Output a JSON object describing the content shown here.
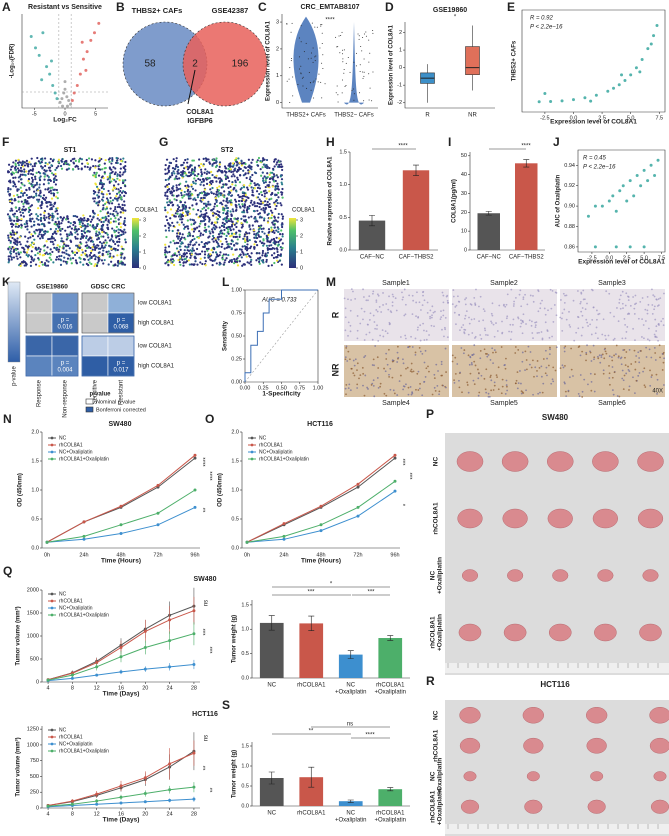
{
  "chart_data": [
    {
      "label": "A",
      "type": "scatter",
      "title": "Resistant vs Sensitive",
      "xlabel": "Log₂FC",
      "ylabel": "-Log₁₀(FDR)",
      "xlim": [
        -7,
        7
      ],
      "xticks": [
        -5,
        0,
        5
      ],
      "ylim": [
        0,
        50
      ],
      "yticks": [],
      "series": [
        {
          "color": "#3aa6a0",
          "x": [
            -5.5,
            -4.8,
            -4.2,
            -3.6,
            -3,
            -2.5,
            -2,
            -1.6,
            -1.3,
            -3.8,
            -2.2
          ],
          "values": [
            38,
            32,
            28,
            40,
            22,
            18,
            12,
            8,
            5,
            15,
            25
          ]
        },
        {
          "color": "#9a9a9a",
          "x": [
            -0.8,
            -0.5,
            -0.2,
            0,
            0.3,
            0.6,
            0.9,
            -0.4,
            0.4,
            0
          ],
          "values": [
            3,
            5,
            8,
            10,
            6,
            4,
            2,
            1,
            1,
            14
          ]
        },
        {
          "color": "#e05a55",
          "x": [
            1.2,
            1.5,
            2,
            2.5,
            3,
            3.6,
            4.2,
            4.8,
            5.5,
            2.8,
            3.4
          ],
          "values": [
            4,
            8,
            12,
            18,
            26,
            30,
            36,
            40,
            45,
            35,
            20
          ]
        }
      ]
    },
    {
      "label": "C",
      "type": "violin",
      "title": "CRC_EMTAB8107",
      "ylabel": "Expression level of COL8A1",
      "categories": [
        "THBS2+ CAFs",
        "THBS2− CAFs"
      ],
      "medians": [
        1.6,
        0
      ],
      "colors": [
        "#3f6fb5",
        "#3f6fb5"
      ],
      "ylim": [
        -0.2,
        3.3
      ],
      "yticks": [
        0,
        1,
        2,
        3
      ],
      "significance": [
        "****"
      ]
    },
    {
      "label": "D",
      "type": "box",
      "title": "GSE19860",
      "ylabel": "Expression level of COL8A1",
      "categories": [
        "R",
        "NR"
      ],
      "colors": [
        "#3c8fc8",
        "#e0705a"
      ],
      "stats": [
        {
          "min": -2,
          "q1": -0.9,
          "median": -0.6,
          "q3": -0.3,
          "max": 0.2
        },
        {
          "min": -1.3,
          "q1": -0.4,
          "median": 0,
          "q3": 1.2,
          "max": 2.4
        }
      ],
      "ylim": [
        -2.3,
        2.6
      ],
      "yticks": [
        -2,
        -1,
        0,
        1,
        2
      ],
      "significance": [
        "*"
      ]
    },
    {
      "label": "E",
      "type": "scatter",
      "xlabel": "Expression level of COL8A1",
      "ylabel": "THBS2+ CAFs",
      "annotations": [
        "R = 0.92",
        "P < 2.2e−16"
      ],
      "xlim": [
        -4.5,
        8
      ],
      "xticks": [
        -2.5,
        {
          "value": 0,
          "label": "0.0"
        },
        2.5,
        {
          "value": 5,
          "label": "5.0"
        },
        7.5
      ],
      "ylim": [
        -0.3,
        3
      ],
      "yticks": [],
      "series": [
        {
          "color": "#2aa198",
          "x": [
            -3,
            -2,
            -1,
            0,
            1,
            2,
            3,
            3.5,
            4,
            4.5,
            5,
            5.5,
            6,
            6.5,
            7,
            7.3,
            -2.5,
            1.5,
            4.2,
            5.8,
            6.8
          ],
          "values": [
            0.03,
            0.04,
            0.06,
            0.1,
            0.16,
            0.24,
            0.37,
            0.47,
            0.58,
            0.72,
            0.9,
            1.13,
            1.4,
            1.75,
            2.17,
            2.5,
            0.3,
            0.05,
            0.9,
            1.0,
            1.9
          ]
        }
      ]
    },
    {
      "label": "H",
      "type": "bar",
      "ylabel": "Relative expression of COL8A1",
      "categories": [
        "CAF−NC",
        "CAF−THBS2"
      ],
      "values": [
        0.45,
        1.22
      ],
      "errors": [
        0.08,
        0.08
      ],
      "colors": [
        "#555555",
        "#c9574a"
      ],
      "ylim": [
        0,
        1.5
      ],
      "yticks": [
        {
          "value": 0,
          "label": "0.0"
        },
        0.5,
        {
          "value": 1,
          "label": "1.0"
        },
        1.5
      ],
      "significance": [
        "****"
      ]
    },
    {
      "label": "I",
      "type": "bar",
      "ylabel": "COL8A1(pg/ml)",
      "categories": [
        "CAF−NC",
        "CAF−THBS2"
      ],
      "values": [
        19.5,
        46
      ],
      "errors": [
        1,
        2
      ],
      "colors": [
        "#555555",
        "#c9574a"
      ],
      "ylim": [
        0,
        52
      ],
      "yticks": [
        0,
        10,
        20,
        30,
        40,
        50
      ],
      "significance": [
        "****"
      ]
    },
    {
      "label": "J",
      "type": "scatter",
      "xlabel": "Expression level of COL8A1",
      "ylabel": "AUC of Oxaliplatin",
      "annotations": [
        "R = 0.45",
        "P < 2.2e−16"
      ],
      "xlim": [
        -4.5,
        8
      ],
      "xticks": [
        -2.5,
        {
          "value": 0,
          "label": "0.0"
        },
        2.5,
        {
          "value": 5,
          "label": "5.0"
        },
        7.5
      ],
      "ylim": [
        0.855,
        0.955
      ],
      "yticks": [
        0.86,
        0.88,
        {
          "value": 0.9,
          "label": "0.90"
        },
        0.92,
        0.94
      ],
      "series": [
        {
          "color": "#2aa198",
          "x": [
            -3,
            -2,
            -1,
            0,
            0.5,
            1,
            1.5,
            2,
            2.5,
            3,
            3.5,
            4,
            4.5,
            5,
            5.5,
            6,
            6.5,
            7,
            3,
            5,
            -2,
            1
          ],
          "values": [
            0.89,
            0.9,
            0.9,
            0.905,
            0.91,
            0.895,
            0.915,
            0.92,
            0.905,
            0.925,
            0.91,
            0.93,
            0.92,
            0.935,
            0.925,
            0.94,
            0.93,
            0.945,
            0.86,
            0.86,
            0.86,
            0.86
          ]
        }
      ]
    },
    {
      "label": "L",
      "type": "line",
      "xlabel": "1-Specificity",
      "ylabel": "Sensitivity",
      "annotations": [
        "AUC = 0.733"
      ],
      "xlim": [
        0,
        1
      ],
      "ylim": [
        0,
        1
      ],
      "xticks": [
        {
          "value": 0,
          "label": "0.00"
        },
        0.25,
        {
          "value": 0.5,
          "label": "0.50"
        },
        0.75,
        {
          "value": 1,
          "label": "1.00"
        }
      ],
      "yticks": [
        {
          "value": 0,
          "label": "0.00"
        },
        0.25,
        {
          "value": 0.5,
          "label": "0.50"
        },
        0.75,
        {
          "value": 1,
          "label": "1.00"
        }
      ],
      "x": [
        0,
        0,
        0.08,
        0.08,
        0.17,
        0.17,
        0.25,
        0.25,
        0.33,
        0.33,
        0.5,
        0.5,
        1
      ],
      "series": [
        {
          "color": "#3c6fb5",
          "values": [
            0,
            0.1,
            0.1,
            0.4,
            0.4,
            0.55,
            0.55,
            0.75,
            0.75,
            0.9,
            0.9,
            1,
            1
          ]
        }
      ]
    },
    {
      "label": "N",
      "type": "line",
      "title": "SW480",
      "xlabel": "Time (Hours)",
      "ylabel": "OD (450nm)",
      "markers": true,
      "categories": [
        "0h",
        "24h",
        "48h",
        "72h",
        "96h"
      ],
      "ylim": [
        0,
        2
      ],
      "yticks": [
        {
          "value": 0,
          "label": "0.0"
        },
        0.5,
        {
          "value": 1,
          "label": "1.0"
        },
        1.5,
        {
          "value": 2,
          "label": "2.0"
        }
      ],
      "significance": [
        "****",
        "****",
        "**"
      ],
      "series": [
        {
          "name": "NC",
          "color": "#555555",
          "values": [
            0.1,
            0.45,
            0.7,
            1.05,
            1.55
          ]
        },
        {
          "name": "rhCOL8A1",
          "color": "#c9574a",
          "values": [
            0.1,
            0.45,
            0.72,
            1.08,
            1.6
          ]
        },
        {
          "name": "NC+Oxaliplatin",
          "color": "#3d8fcf",
          "values": [
            0.1,
            0.15,
            0.25,
            0.4,
            0.7
          ]
        },
        {
          "name": "rhCOL8A1+Oxaliplatin",
          "color": "#4daf6a",
          "values": [
            0.1,
            0.2,
            0.4,
            0.6,
            1.0
          ]
        }
      ]
    },
    {
      "label": "O",
      "type": "line",
      "title": "HCT116",
      "xlabel": "Time (Hours)",
      "ylabel": "OD (450nm)",
      "markers": true,
      "categories": [
        "0h",
        "24h",
        "48h",
        "72h",
        "96h"
      ],
      "ylim": [
        0,
        2
      ],
      "yticks": [
        {
          "value": 0,
          "label": "0.0"
        },
        0.5,
        {
          "value": 1,
          "label": "1.0"
        },
        1.5,
        {
          "value": 2,
          "label": "2.0"
        }
      ],
      "significance": [
        "***",
        "***",
        "*"
      ],
      "series": [
        {
          "name": "NC",
          "color": "#555555",
          "values": [
            0.1,
            0.4,
            0.7,
            1.05,
            1.55
          ]
        },
        {
          "name": "rhCOL8A1",
          "color": "#c9574a",
          "values": [
            0.1,
            0.42,
            0.72,
            1.1,
            1.6
          ]
        },
        {
          "name": "NC+Oxaliplatin",
          "color": "#3d8fcf",
          "values": [
            0.1,
            0.15,
            0.3,
            0.55,
            0.98
          ]
        },
        {
          "name": "rhCOL8A1+Oxaliplatin",
          "color": "#4daf6a",
          "values": [
            0.1,
            0.2,
            0.4,
            0.7,
            1.15
          ]
        }
      ]
    },
    {
      "label": "Q",
      "type": "line",
      "title": "SW480",
      "xlabel": "Time (Days)",
      "ylabel": "Tumor volume (mm³)",
      "markers": true,
      "x": [
        4,
        8,
        12,
        16,
        20,
        24,
        28
      ],
      "xlim": [
        3,
        29
      ],
      "xticks": [
        4,
        8,
        12,
        16,
        20,
        24,
        28
      ],
      "ylim": [
        0,
        2000
      ],
      "yticks": [
        0,
        500,
        1000,
        1500,
        2000
      ],
      "significance": [
        "ns",
        "***",
        "***"
      ],
      "series": [
        {
          "name": "NC",
          "color": "#555555",
          "values": [
            50,
            200,
            450,
            800,
            1150,
            1450,
            1650
          ],
          "errors": [
            20,
            50,
            80,
            150,
            200,
            300,
            400
          ]
        },
        {
          "name": "rhCOL8A1",
          "color": "#c9574a",
          "values": [
            50,
            190,
            420,
            750,
            1100,
            1350,
            1550
          ],
          "errors": [
            20,
            50,
            100,
            150,
            250,
            300,
            300
          ]
        },
        {
          "name": "NC+Oxaliplatin",
          "color": "#3d8fcf",
          "values": [
            30,
            80,
            150,
            220,
            280,
            330,
            380
          ],
          "errors": [
            10,
            20,
            30,
            50,
            60,
            80,
            100
          ]
        },
        {
          "name": "rhCOL8A1+Oxaliplatin",
          "color": "#4daf6a",
          "values": [
            40,
            150,
            330,
            550,
            750,
            900,
            1050
          ],
          "errors": [
            10,
            40,
            80,
            120,
            150,
            200,
            250
          ]
        }
      ]
    },
    {
      "type": "bar",
      "ylabel": "Tumor weight (g)",
      "categories": [
        "NC",
        "rhCOL8A1",
        "NC\n+Oxaliplatin",
        "rhCOL8A1\n+Oxaliplatin"
      ],
      "values": [
        1.13,
        1.12,
        0.48,
        0.82
      ],
      "errors": [
        0.15,
        0.15,
        0.08,
        0.05
      ],
      "colors": [
        "#555555",
        "#c9574a",
        "#3d8fcf",
        "#4daf6a"
      ],
      "ylim": [
        0,
        1.6
      ],
      "yticks": [
        {
          "value": 0,
          "label": "0.0"
        },
        0.5,
        {
          "value": 1,
          "label": "1.0"
        },
        1.5
      ],
      "significance": [
        "*",
        "***",
        "***"
      ]
    },
    {
      "type": "line",
      "title": "HCT116",
      "xlabel": "Time (Days)",
      "ylabel": "Tumor volume (mm³)",
      "markers": true,
      "x": [
        4,
        8,
        12,
        16,
        20,
        24,
        28
      ],
      "xlim": [
        3,
        29
      ],
      "xticks": [
        4,
        8,
        12,
        16,
        20,
        24,
        28
      ],
      "ylim": [
        0,
        1300
      ],
      "yticks": [
        0,
        250,
        500,
        750,
        1000,
        1250
      ],
      "significance": [
        "ns",
        "**",
        "**"
      ],
      "series": [
        {
          "name": "NC",
          "color": "#555555",
          "values": [
            40,
            100,
            200,
            320,
            450,
            650,
            900
          ],
          "errors": [
            10,
            20,
            40,
            60,
            100,
            200,
            300
          ]
        },
        {
          "name": "rhCOL8A1",
          "color": "#c9574a",
          "values": [
            40,
            110,
            220,
            350,
            480,
            700,
            870
          ],
          "errors": [
            10,
            30,
            50,
            80,
            100,
            250,
            200
          ]
        },
        {
          "name": "NC+Oxaliplatin",
          "color": "#3d8fcf",
          "values": [
            20,
            40,
            60,
            80,
            100,
            120,
            140
          ],
          "errors": [
            5,
            10,
            10,
            15,
            20,
            30,
            40
          ]
        },
        {
          "name": "rhCOL8A1+Oxaliplatin",
          "color": "#4daf6a",
          "values": [
            30,
            60,
            110,
            170,
            230,
            290,
            330
          ],
          "errors": [
            5,
            15,
            30,
            40,
            50,
            60,
            80
          ]
        }
      ]
    },
    {
      "label": "S",
      "type": "bar",
      "ylabel": "Tumor weight (g)",
      "categories": [
        "NC",
        "rhCOL8A1",
        "NC\n+Oxaliplatin",
        "rhCOL8A1\n+Oxaliplatin"
      ],
      "values": [
        0.7,
        0.72,
        0.12,
        0.42
      ],
      "errors": [
        0.15,
        0.25,
        0.03,
        0.04
      ],
      "colors": [
        "#555555",
        "#c9574a",
        "#3d8fcf",
        "#4daf6a"
      ],
      "ylim": [
        0,
        1.6
      ],
      "yticks": [
        {
          "value": 0,
          "label": "0.0"
        },
        0.5,
        {
          "value": 1,
          "label": "1.0"
        },
        1.5
      ],
      "significance": [
        "ns",
        "**",
        "****"
      ]
    }
  ],
  "venn": {
    "label": "B",
    "sets": [
      "THBS2+ CAFs",
      "GSE42387"
    ],
    "counts": [
      58,
      2,
      196
    ],
    "shared_genes": [
      "COL8A1",
      "IGFBP6"
    ]
  },
  "spatial": [
    {
      "label": "F",
      "title": "ST1"
    },
    {
      "label": "G",
      "title": "ST2"
    }
  ],
  "spatial_legend": {
    "title": "COL8A1",
    "ticks": [
      0,
      1,
      2,
      3
    ]
  },
  "heatmap": {
    "label": "K",
    "datasets": [
      {
        "name": "GSE19860",
        "columns": [
          "Response",
          "Non-response"
        ],
        "p_values": [
          "p =\n0.016",
          "p =\n0.004"
        ]
      },
      {
        "name": "GDSC CRC",
        "columns": [
          "Sensitive",
          "Resistant"
        ],
        "p_values": [
          "p =\n0.068",
          "p =\n0.017"
        ]
      }
    ],
    "rows": [
      "low COL8A1",
      "high COL8A1",
      "low COL8A1",
      "high COL8A1"
    ],
    "colorbar_title": "p-value",
    "legend_title": "p-value",
    "legend": [
      "Nominal p value",
      "Bonferroni corrected"
    ]
  },
  "ihc": {
    "label": "M",
    "rows": [
      "R",
      "NR"
    ],
    "samples": [
      "Sample1",
      "Sample2",
      "Sample3",
      "Sample4",
      "Sample5",
      "Sample6"
    ],
    "magnification": "40X"
  },
  "xenograft": [
    {
      "label": "P",
      "title": "SW480"
    },
    {
      "label": "R",
      "title": "HCT116"
    }
  ],
  "xenograft_groups": [
    "NC",
    "rhCOL8A1",
    "NC\n+Oxaliplatin",
    "rhCOL8A1\n+Oxaliplatin"
  ]
}
